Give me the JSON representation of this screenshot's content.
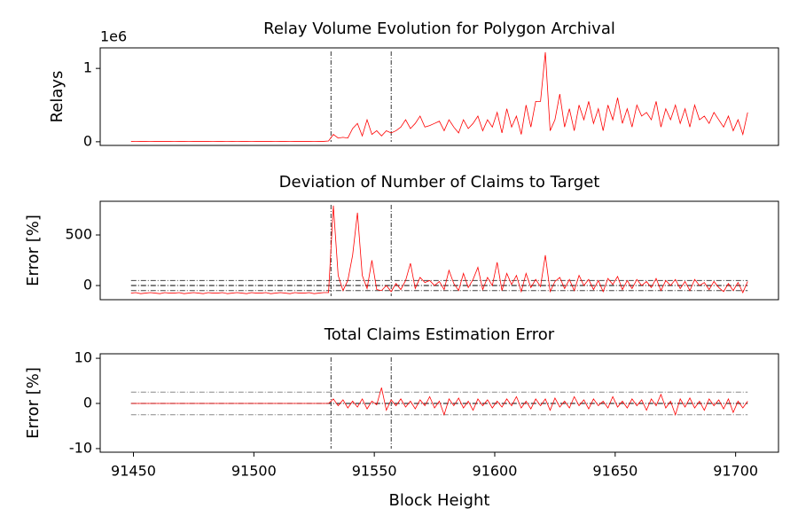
{
  "chart_data": [
    {
      "type": "line",
      "title": "Relay Volume Evolution for Polygon Archival",
      "y_label": "Relays",
      "offset_text": "1e6",
      "color": "#ff0000",
      "x": [
        91449,
        91451,
        91453,
        91455,
        91457,
        91459,
        91461,
        91463,
        91465,
        91467,
        91469,
        91471,
        91473,
        91475,
        91477,
        91479,
        91481,
        91483,
        91485,
        91487,
        91489,
        91491,
        91493,
        91495,
        91497,
        91499,
        91501,
        91503,
        91505,
        91507,
        91509,
        91511,
        91513,
        91515,
        91517,
        91519,
        91521,
        91523,
        91525,
        91527,
        91529,
        91531,
        91533,
        91535,
        91537,
        91539,
        91541,
        91543,
        91545,
        91547,
        91549,
        91551,
        91553,
        91555,
        91557,
        91559,
        91561,
        91563,
        91565,
        91567,
        91569,
        91571,
        91573,
        91575,
        91577,
        91579,
        91581,
        91583,
        91585,
        91587,
        91589,
        91591,
        91593,
        91595,
        91597,
        91599,
        91601,
        91603,
        91605,
        91607,
        91609,
        91611,
        91613,
        91615,
        91617,
        91619,
        91621,
        91623,
        91625,
        91627,
        91629,
        91631,
        91633,
        91635,
        91637,
        91639,
        91641,
        91643,
        91645,
        91647,
        91649,
        91651,
        91653,
        91655,
        91657,
        91659,
        91661,
        91663,
        91665,
        91667,
        91669,
        91671,
        91673,
        91675,
        91677,
        91679,
        91681,
        91683,
        91685,
        91687,
        91689,
        91691,
        91693,
        91695,
        91697,
        91699,
        91701,
        91703,
        91705
      ],
      "values": [
        0.005,
        0.004,
        0.005,
        0.005,
        0.004,
        0.005,
        0.005,
        0.006,
        0.005,
        0.004,
        0.005,
        0.005,
        0.004,
        0.005,
        0.006,
        0.005,
        0.005,
        0.004,
        0.005,
        0.005,
        0.006,
        0.005,
        0.004,
        0.005,
        0.005,
        0.004,
        0.005,
        0.005,
        0.006,
        0.005,
        0.004,
        0.005,
        0.005,
        0.004,
        0.005,
        0.005,
        0.006,
        0.005,
        0.004,
        0.005,
        0.005,
        0.01,
        0.1,
        0.05,
        0.06,
        0.05,
        0.18,
        0.25,
        0.08,
        0.3,
        0.1,
        0.15,
        0.08,
        0.15,
        0.12,
        0.15,
        0.2,
        0.3,
        0.18,
        0.25,
        0.35,
        0.2,
        0.22,
        0.25,
        0.28,
        0.15,
        0.3,
        0.2,
        0.12,
        0.3,
        0.18,
        0.25,
        0.35,
        0.15,
        0.3,
        0.2,
        0.4,
        0.12,
        0.45,
        0.2,
        0.35,
        0.1,
        0.5,
        0.2,
        0.55,
        0.55,
        1.22,
        0.15,
        0.3,
        0.65,
        0.2,
        0.45,
        0.15,
        0.5,
        0.3,
        0.55,
        0.25,
        0.45,
        0.15,
        0.5,
        0.3,
        0.6,
        0.25,
        0.45,
        0.2,
        0.5,
        0.35,
        0.4,
        0.3,
        0.55,
        0.2,
        0.45,
        0.3,
        0.5,
        0.25,
        0.45,
        0.2,
        0.5,
        0.3,
        0.35,
        0.25,
        0.4,
        0.3,
        0.2,
        0.35,
        0.15,
        0.3,
        0.1,
        0.4
      ],
      "xlim": [
        91436.2,
        91717.8
      ],
      "ylim": [
        -0.05,
        1.28
      ],
      "yticks": [
        0,
        1
      ],
      "vlines": [
        91532,
        91557
      ],
      "hlines": []
    },
    {
      "type": "line",
      "title": "Deviation of Number of Claims to Target",
      "y_label": "Error [%]",
      "color": "#ff0000",
      "x": [
        91449,
        91451,
        91453,
        91455,
        91457,
        91459,
        91461,
        91463,
        91465,
        91467,
        91469,
        91471,
        91473,
        91475,
        91477,
        91479,
        91481,
        91483,
        91485,
        91487,
        91489,
        91491,
        91493,
        91495,
        91497,
        91499,
        91501,
        91503,
        91505,
        91507,
        91509,
        91511,
        91513,
        91515,
        91517,
        91519,
        91521,
        91523,
        91525,
        91527,
        91529,
        91531,
        91533,
        91535,
        91537,
        91539,
        91541,
        91543,
        91545,
        91547,
        91549,
        91551,
        91553,
        91555,
        91557,
        91559,
        91561,
        91563,
        91565,
        91567,
        91569,
        91571,
        91573,
        91575,
        91577,
        91579,
        91581,
        91583,
        91585,
        91587,
        91589,
        91591,
        91593,
        91595,
        91597,
        91599,
        91601,
        91603,
        91605,
        91607,
        91609,
        91611,
        91613,
        91615,
        91617,
        91619,
        91621,
        91623,
        91625,
        91627,
        91629,
        91631,
        91633,
        91635,
        91637,
        91639,
        91641,
        91643,
        91645,
        91647,
        91649,
        91651,
        91653,
        91655,
        91657,
        91659,
        91661,
        91663,
        91665,
        91667,
        91669,
        91671,
        91673,
        91675,
        91677,
        91679,
        91681,
        91683,
        91685,
        91687,
        91689,
        91691,
        91693,
        91695,
        91697,
        91699,
        91701,
        91703,
        91705
      ],
      "values": [
        -75,
        -70,
        -80,
        -75,
        -70,
        -75,
        -80,
        -70,
        -75,
        -75,
        -70,
        -80,
        -75,
        -70,
        -75,
        -80,
        -70,
        -75,
        -75,
        -70,
        -80,
        -75,
        -70,
        -75,
        -80,
        -70,
        -75,
        -75,
        -70,
        -80,
        -75,
        -70,
        -75,
        -80,
        -70,
        -75,
        -75,
        -70,
        -80,
        -75,
        -70,
        -70,
        790,
        100,
        -50,
        50,
        300,
        720,
        100,
        -30,
        250,
        -40,
        -50,
        0,
        -60,
        20,
        -40,
        50,
        220,
        -30,
        80,
        30,
        50,
        0,
        40,
        -40,
        150,
        20,
        -50,
        120,
        -20,
        60,
        180,
        -40,
        80,
        0,
        230,
        -50,
        120,
        10,
        100,
        -60,
        120,
        -20,
        60,
        -10,
        300,
        -60,
        40,
        80,
        -30,
        60,
        -50,
        100,
        0,
        60,
        -40,
        50,
        -60,
        70,
        10,
        90,
        -40,
        50,
        -30,
        60,
        0,
        40,
        -20,
        70,
        -50,
        50,
        0,
        60,
        -30,
        40,
        -50,
        60,
        0,
        30,
        -40,
        40,
        -20,
        -60,
        20,
        -50,
        30,
        -70,
        40
      ],
      "xlim": [
        91436.2,
        91717.8
      ],
      "ylim": [
        -140,
        833
      ],
      "yticks": [
        0,
        500
      ],
      "vlines": [
        91532,
        91557
      ],
      "hlines": [
        {
          "y": 50,
          "color": "#444444"
        },
        {
          "y": 0,
          "color": "#000000"
        },
        {
          "y": -50,
          "color": "#444444"
        }
      ]
    },
    {
      "type": "line",
      "title": "Total Claims Estimation Error",
      "y_label": "Error [%]",
      "x_label": "Block Height",
      "color": "#ff0000",
      "x": [
        91449,
        91451,
        91453,
        91455,
        91457,
        91459,
        91461,
        91463,
        91465,
        91467,
        91469,
        91471,
        91473,
        91475,
        91477,
        91479,
        91481,
        91483,
        91485,
        91487,
        91489,
        91491,
        91493,
        91495,
        91497,
        91499,
        91501,
        91503,
        91505,
        91507,
        91509,
        91511,
        91513,
        91515,
        91517,
        91519,
        91521,
        91523,
        91525,
        91527,
        91529,
        91531,
        91533,
        91535,
        91537,
        91539,
        91541,
        91543,
        91545,
        91547,
        91549,
        91551,
        91553,
        91555,
        91557,
        91559,
        91561,
        91563,
        91565,
        91567,
        91569,
        91571,
        91573,
        91575,
        91577,
        91579,
        91581,
        91583,
        91585,
        91587,
        91589,
        91591,
        91593,
        91595,
        91597,
        91599,
        91601,
        91603,
        91605,
        91607,
        91609,
        91611,
        91613,
        91615,
        91617,
        91619,
        91621,
        91623,
        91625,
        91627,
        91629,
        91631,
        91633,
        91635,
        91637,
        91639,
        91641,
        91643,
        91645,
        91647,
        91649,
        91651,
        91653,
        91655,
        91657,
        91659,
        91661,
        91663,
        91665,
        91667,
        91669,
        91671,
        91673,
        91675,
        91677,
        91679,
        91681,
        91683,
        91685,
        91687,
        91689,
        91691,
        91693,
        91695,
        91697,
        91699,
        91701,
        91703,
        91705
      ],
      "values": [
        0,
        0,
        0,
        0,
        0,
        0,
        0,
        0,
        0,
        0,
        0,
        0,
        0,
        0,
        0,
        0,
        0,
        0,
        0,
        0,
        0,
        0,
        0,
        0,
        0,
        0,
        0,
        0,
        0,
        0,
        0,
        0,
        0,
        0,
        0,
        0,
        0,
        0,
        0,
        0,
        0,
        0,
        1,
        -0.5,
        0.8,
        -1,
        0.5,
        -0.8,
        1,
        -1.2,
        0.5,
        -0.3,
        3.5,
        -1.5,
        0.8,
        -0.5,
        1,
        -0.8,
        0.5,
        -1.2,
        0.8,
        -0.5,
        1.5,
        -1,
        0.5,
        -2.5,
        1,
        -0.5,
        1.2,
        -1,
        0.5,
        -1.5,
        1,
        -0.5,
        0.8,
        -1,
        0.5,
        -0.8,
        1,
        -0.5,
        1.5,
        -1,
        0.5,
        -1.2,
        1,
        -0.5,
        1,
        -1.5,
        1.2,
        -0.8,
        0.5,
        -1,
        1.5,
        -0.5,
        0.8,
        -1.2,
        1,
        -0.5,
        0.5,
        -1,
        1.5,
        -0.8,
        0.5,
        -1,
        1,
        -0.5,
        0.8,
        -1.5,
        1,
        -0.5,
        2,
        -1,
        0.5,
        -2.5,
        1,
        -0.8,
        1.2,
        -1,
        0.5,
        -1.5,
        1,
        -0.5,
        0.8,
        -1.2,
        1,
        -2,
        0.5,
        -1,
        0.5
      ],
      "xlim": [
        91436.2,
        91717.8
      ],
      "ylim": [
        -10.8,
        11
      ],
      "yticks": [
        -10,
        0,
        10
      ],
      "xticks": [
        91450,
        91500,
        91550,
        91600,
        91650,
        91700
      ],
      "vlines": [
        91532,
        91557
      ],
      "hlines": [
        {
          "y": 2.5,
          "color": "#888888"
        },
        {
          "y": 0,
          "color": "#000000"
        },
        {
          "y": -2.5,
          "color": "#888888"
        }
      ]
    }
  ]
}
